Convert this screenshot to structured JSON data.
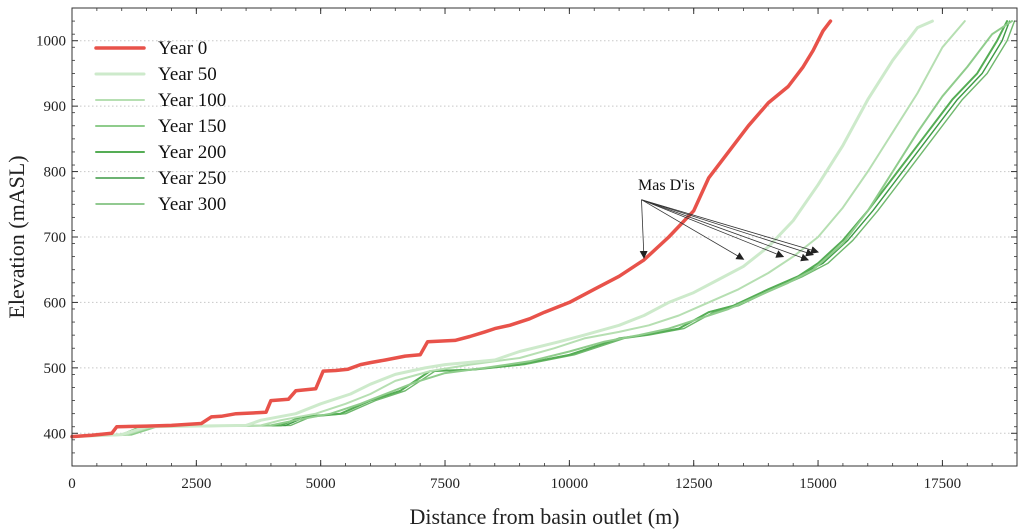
{
  "chart_data": {
    "type": "line",
    "title": "",
    "xlabel": "Distance from basin outlet (m)",
    "ylabel": "Elevation (mASL)",
    "xlim": [
      0,
      19000
    ],
    "ylim": [
      350,
      1050
    ],
    "xticks": [
      0,
      2500,
      5000,
      7500,
      10000,
      12500,
      15000,
      17500
    ],
    "yticks": [
      400,
      500,
      600,
      700,
      800,
      900,
      1000
    ],
    "grid": "horizontal-dotted",
    "legend_position": "top-left",
    "series": [
      {
        "name": "Year 0",
        "color": "#e8524a",
        "width": 3.5,
        "x": [
          0,
          400,
          800,
          900,
          1500,
          2000,
          2600,
          2800,
          3000,
          3300,
          3900,
          4000,
          4350,
          4500,
          4900,
          5050,
          5300,
          5550,
          5800,
          6000,
          6300,
          6700,
          7000,
          7150,
          7700,
          8000,
          8300,
          8500,
          8800,
          9200,
          9500,
          10000,
          10500,
          11000,
          11500,
          12000,
          12500,
          12800,
          13200,
          13600,
          14000,
          14400,
          14700,
          14900,
          15100,
          15250
        ],
        "y": [
          395,
          397,
          400,
          410,
          411,
          412,
          415,
          425,
          426,
          430,
          432,
          450,
          452,
          465,
          468,
          495,
          496,
          498,
          505,
          508,
          512,
          518,
          520,
          540,
          542,
          548,
          555,
          560,
          565,
          575,
          585,
          600,
          620,
          640,
          665,
          700,
          740,
          790,
          830,
          870,
          905,
          930,
          960,
          985,
          1015,
          1030
        ]
      },
      {
        "name": "Year 50",
        "color": "#cdeacb",
        "width": 3,
        "x": [
          0,
          1000,
          1500,
          3500,
          3800,
          4500,
          5000,
          5600,
          6000,
          6500,
          7100,
          7500,
          8500,
          9000,
          9800,
          10300,
          11000,
          11500,
          12000,
          12500,
          13000,
          13500,
          14000,
          14500,
          15000,
          15500,
          16000,
          16500,
          17000,
          17300
        ],
        "y": [
          395,
          398,
          410,
          412,
          420,
          430,
          445,
          460,
          475,
          490,
          500,
          505,
          512,
          525,
          540,
          550,
          565,
          580,
          600,
          615,
          635,
          655,
          685,
          725,
          780,
          840,
          910,
          970,
          1020,
          1030
        ]
      },
      {
        "name": "Year 100",
        "color": "#b6dfb2",
        "width": 2,
        "x": [
          0,
          1100,
          1600,
          3800,
          4200,
          4900,
          5500,
          6000,
          6500,
          7200,
          8000,
          9000,
          9700,
          10300,
          11000,
          11600,
          12200,
          12800,
          13400,
          14000,
          14500,
          15000,
          15500,
          16000,
          16500,
          17000,
          17500,
          17950
        ],
        "y": [
          395,
          398,
          410,
          412,
          420,
          430,
          445,
          460,
          480,
          495,
          505,
          515,
          530,
          545,
          555,
          565,
          580,
          600,
          620,
          645,
          670,
          700,
          745,
          800,
          860,
          920,
          990,
          1030
        ]
      },
      {
        "name": "Year 150",
        "color": "#8fcc8c",
        "width": 2,
        "x": [
          0,
          1200,
          1700,
          4000,
          4500,
          5200,
          5800,
          6300,
          6900,
          7500,
          8300,
          9200,
          10000,
          10700,
          11400,
          12000,
          12600,
          13200,
          13800,
          14400,
          14900,
          15500,
          16000,
          16500,
          17000,
          17500,
          18000,
          18500,
          18900
        ],
        "y": [
          395,
          398,
          410,
          412,
          420,
          430,
          445,
          460,
          478,
          492,
          500,
          510,
          525,
          540,
          550,
          560,
          575,
          590,
          610,
          630,
          650,
          690,
          740,
          800,
          860,
          915,
          960,
          1010,
          1030
        ]
      },
      {
        "name": "Year 200",
        "color": "#55ad55",
        "width": 2,
        "x": [
          0,
          1000,
          1400,
          4200,
          4600,
          5400,
          6000,
          6600,
          7200,
          8000,
          9000,
          10000,
          11000,
          11500,
          12200,
          12800,
          13300,
          14000,
          14600,
          15000,
          15500,
          16000,
          16600,
          17200,
          17700,
          18200,
          18600,
          18800
        ],
        "y": [
          395,
          398,
          410,
          412,
          425,
          430,
          450,
          465,
          495,
          497,
          505,
          520,
          545,
          550,
          560,
          585,
          595,
          620,
          640,
          660,
          695,
          740,
          800,
          860,
          910,
          950,
          1000,
          1030
        ]
      },
      {
        "name": "Year 250",
        "color": "#3d9a45",
        "width": 1.4,
        "x": [
          0,
          1000,
          1400,
          4300,
          4700,
          5400,
          6000,
          6600,
          7200,
          8000,
          9000,
          10000,
          11000,
          11500,
          12200,
          12800,
          13300,
          14000,
          14600,
          15100,
          15600,
          16100,
          16700,
          17300,
          17800,
          18300,
          18700,
          18850
        ],
        "y": [
          395,
          398,
          410,
          412,
          425,
          430,
          450,
          465,
          495,
          497,
          505,
          520,
          545,
          550,
          560,
          585,
          595,
          620,
          640,
          660,
          695,
          740,
          800,
          860,
          910,
          950,
          1000,
          1030
        ]
      },
      {
        "name": "Year 300",
        "color": "#6fb86d",
        "width": 1.4,
        "x": [
          0,
          1000,
          1400,
          4400,
          4800,
          5500,
          6100,
          6700,
          7300,
          8100,
          9100,
          10100,
          11100,
          11600,
          12300,
          12900,
          13400,
          14100,
          14700,
          15200,
          15700,
          16200,
          16800,
          17400,
          17900,
          18400,
          18800,
          18950
        ],
        "y": [
          395,
          398,
          410,
          412,
          425,
          430,
          450,
          465,
          495,
          497,
          505,
          520,
          545,
          550,
          560,
          585,
          595,
          620,
          640,
          660,
          695,
          740,
          800,
          860,
          910,
          950,
          1000,
          1030
        ]
      }
    ],
    "annotations": [
      {
        "text": "Mas D'is",
        "text_at": [
          11950,
          772
        ],
        "origin": [
          11450,
          757
        ],
        "arrows_to": [
          [
            11500,
            668
          ],
          [
            13500,
            666
          ],
          [
            14300,
            670
          ],
          [
            14800,
            665
          ],
          [
            14900,
            673
          ],
          [
            15000,
            677
          ]
        ]
      }
    ]
  }
}
